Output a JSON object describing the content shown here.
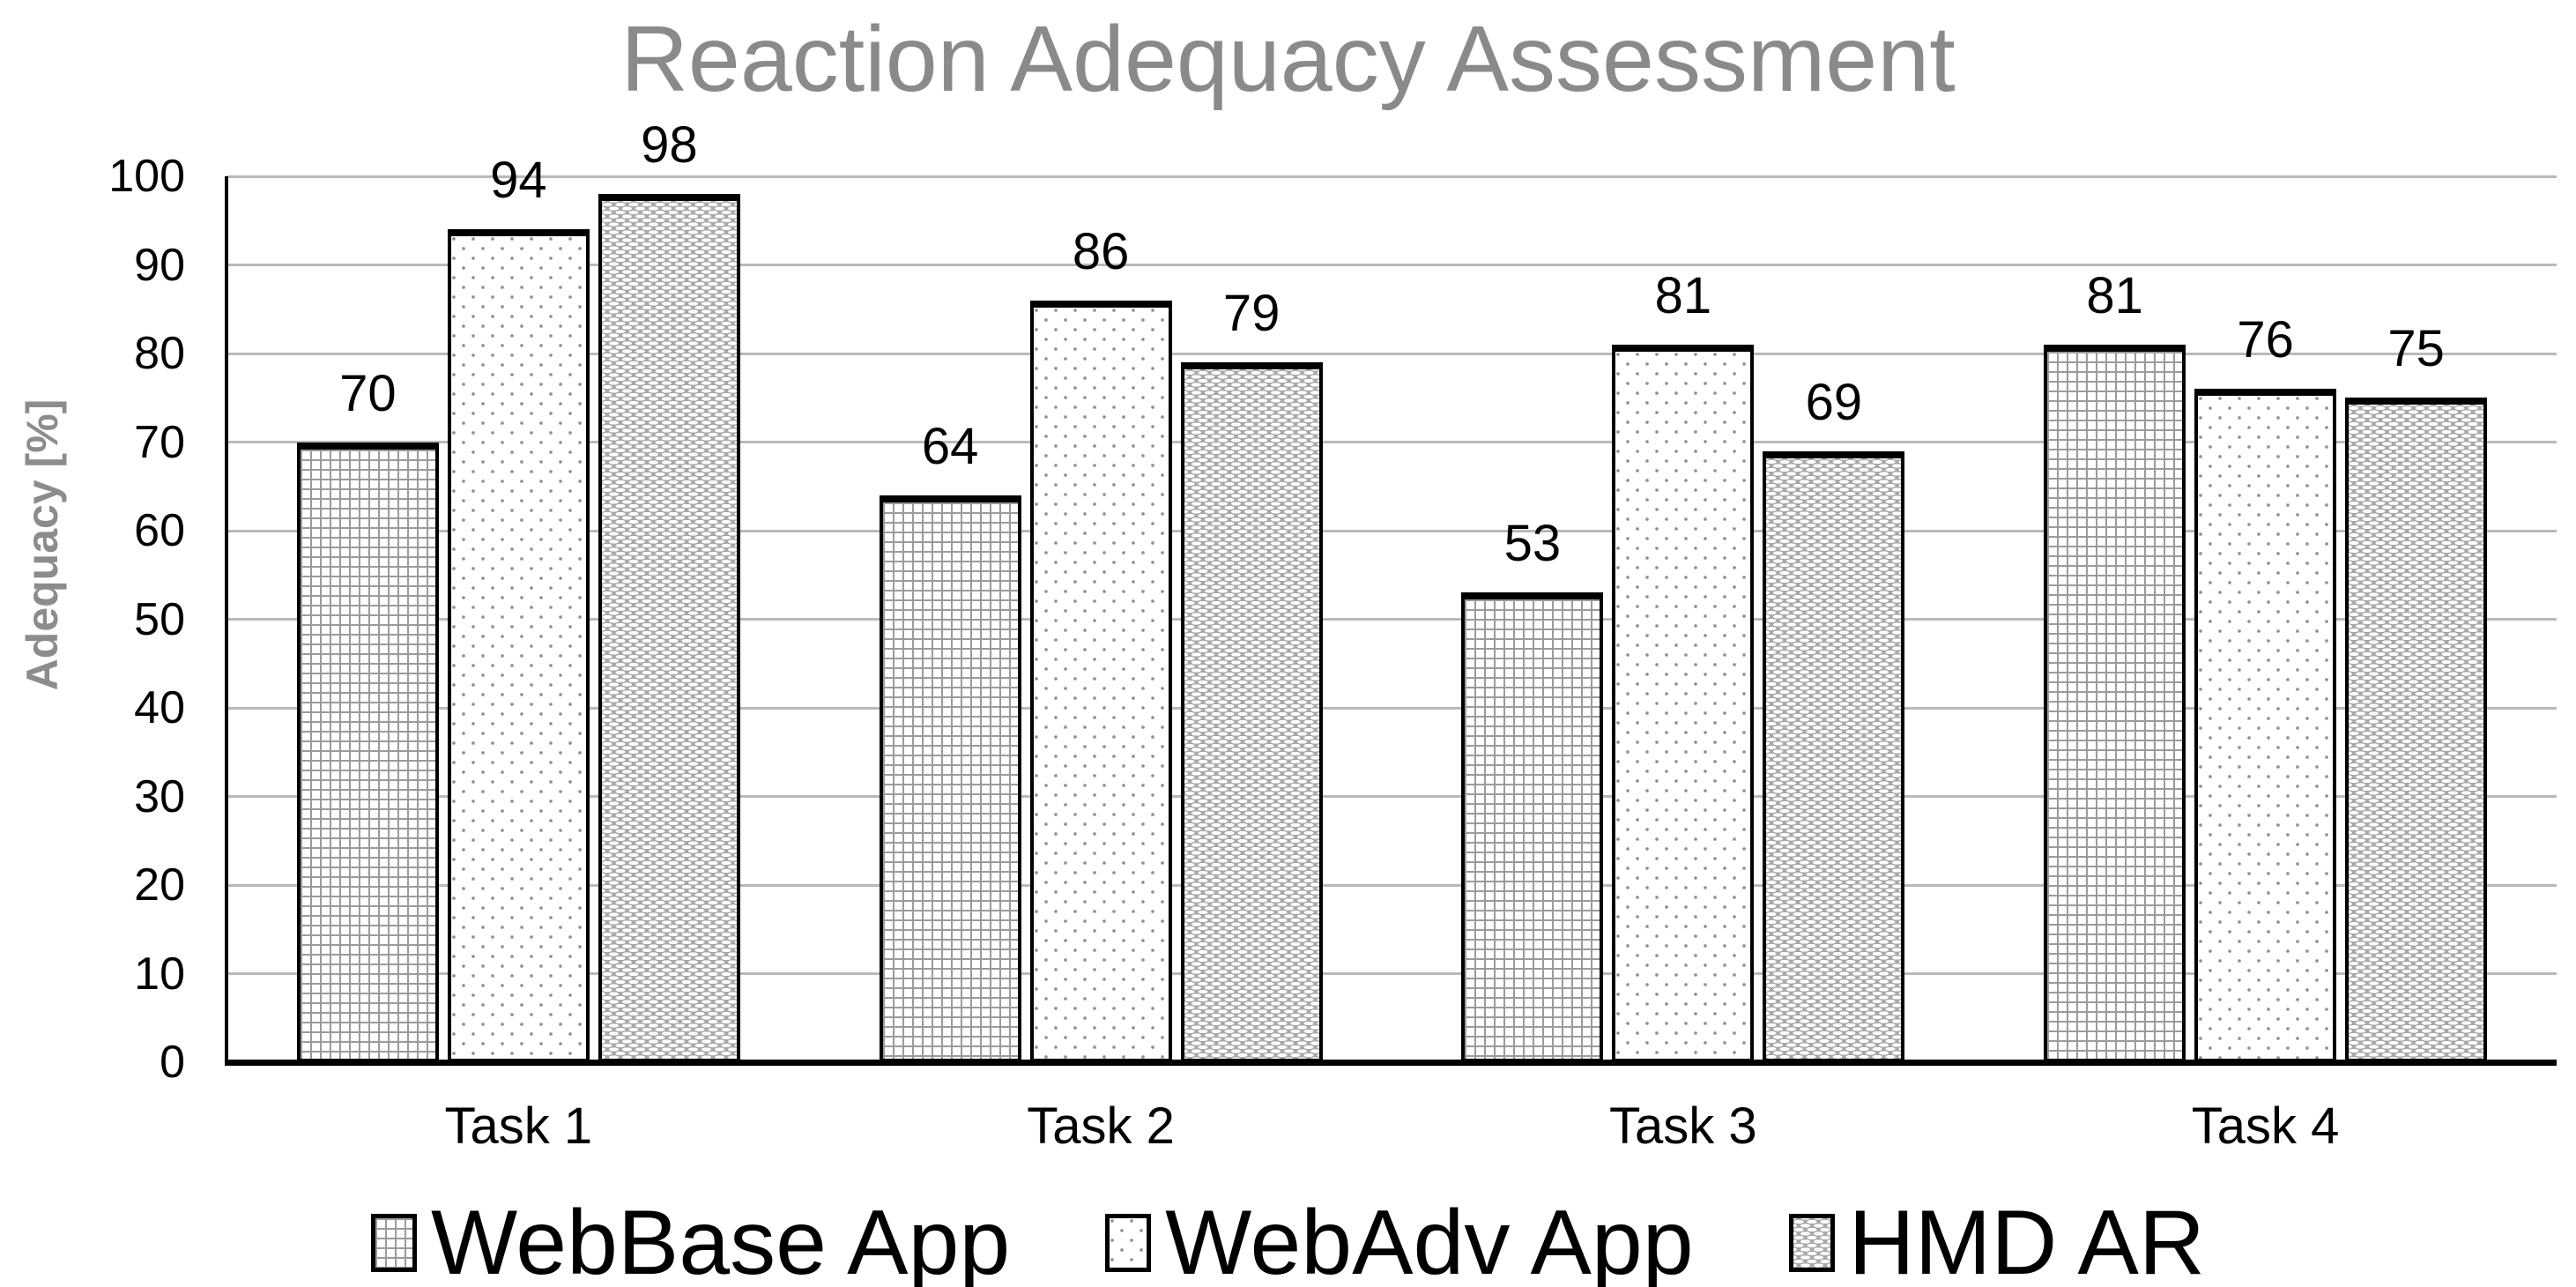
{
  "chart_data": {
    "type": "bar",
    "title": "Reaction Adequacy Assessment",
    "ylabel": "Adequacy [%]",
    "xlabel": "",
    "categories": [
      "Task 1",
      "Task 2",
      "Task 3",
      "Task 4"
    ],
    "series": [
      {
        "name": "WebBase App",
        "pattern": "fine-grid",
        "values": [
          70,
          64,
          53,
          81
        ]
      },
      {
        "name": "WebAdv App",
        "pattern": "sparse-dots",
        "values": [
          94,
          86,
          81,
          76
        ]
      },
      {
        "name": "HMD AR",
        "pattern": "white-dashes-on-gray",
        "values": [
          98,
          79,
          69,
          75
        ]
      }
    ],
    "ylim": [
      0,
      100
    ],
    "ytick_step": 10,
    "yticks": [
      "0",
      "10",
      "20",
      "30",
      "40",
      "50",
      "60",
      "70",
      "80",
      "90",
      "100"
    ],
    "grid": "horizontal",
    "data_labels": true,
    "legend_position": "bottom",
    "colors": {
      "title_gray": "#8a8a8a",
      "axis_label_gray": "#8c8c8c",
      "gridline_gray": "#b9b9b9",
      "axis_black": "#000000",
      "hmd_bar_fill_gray": "#a8a8a8",
      "pattern_gray": "#9b9b9b",
      "bar_border_black": "#000000"
    }
  }
}
